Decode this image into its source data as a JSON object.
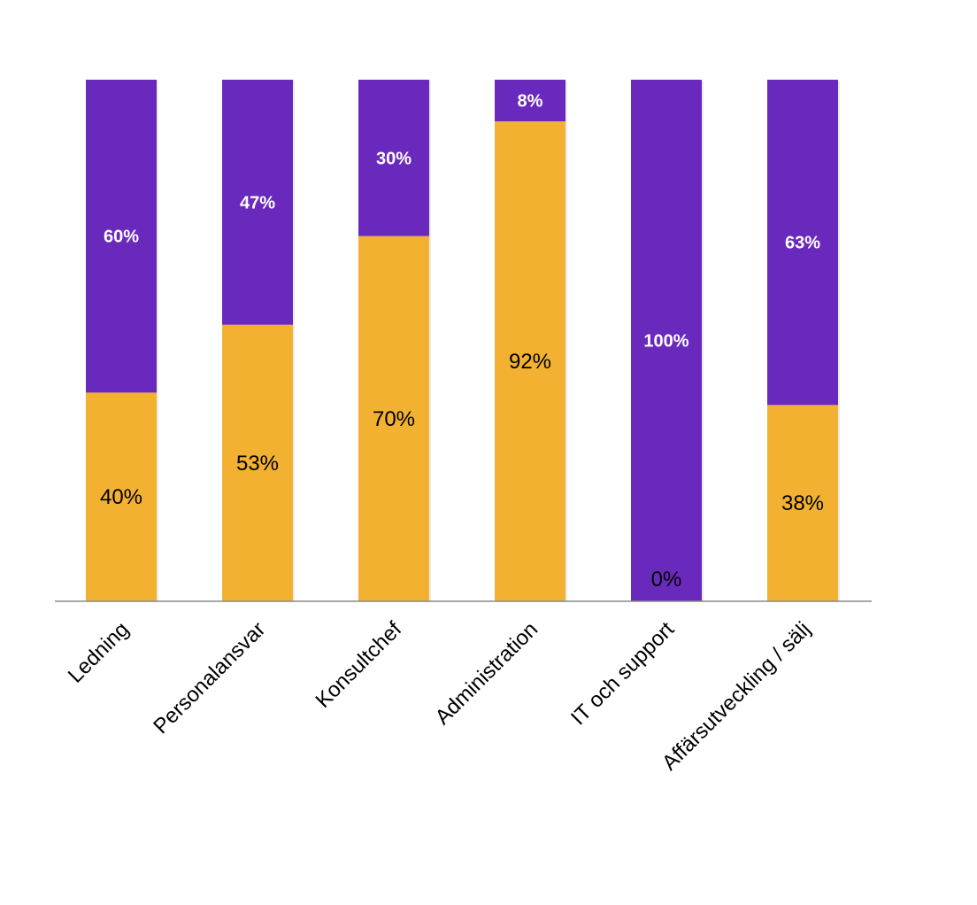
{
  "chart_data": {
    "type": "bar",
    "stacked": true,
    "normalized": true,
    "categories": [
      "Ledning",
      "Personalansvar",
      "Konsultchef",
      "Administration",
      "IT och support",
      "Affärsutveckling / sälj"
    ],
    "series": [
      {
        "name": "",
        "color": "#F2B130",
        "values": [
          40,
          53,
          70,
          92,
          0,
          38
        ],
        "labels": [
          "40%",
          "53%",
          "70%",
          "92%",
          "0%",
          "38%"
        ]
      },
      {
        "name": "",
        "color": "#6A29BD",
        "values": [
          60,
          47,
          30,
          8,
          100,
          63
        ],
        "labels": [
          "60%",
          "47%",
          "30%",
          "8%",
          "100%",
          "63%"
        ]
      }
    ],
    "title": "",
    "xlabel": "",
    "ylabel": "",
    "ylim": [
      0,
      100
    ],
    "legend": "none",
    "grid": false
  }
}
